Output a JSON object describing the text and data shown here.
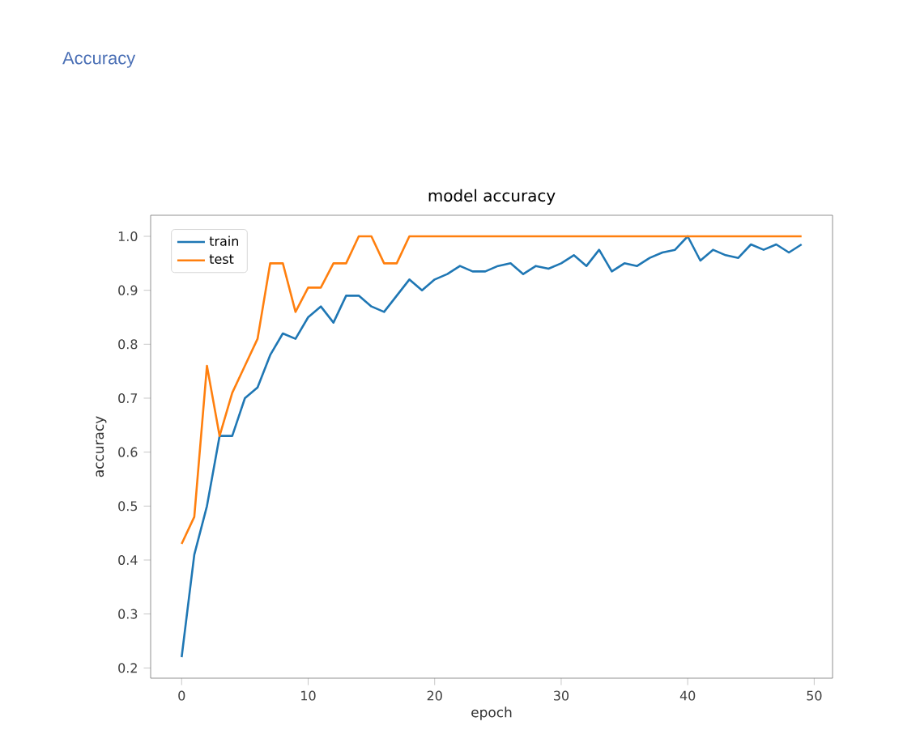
{
  "chart_data": {
    "type": "line",
    "title": "model accuracy",
    "xlabel": "epoch",
    "ylabel": "accuracy",
    "annotations": [
      "Accuracy"
    ],
    "x": [
      0,
      1,
      2,
      3,
      4,
      5,
      6,
      7,
      8,
      9,
      10,
      11,
      12,
      13,
      14,
      15,
      16,
      17,
      18,
      19,
      20,
      21,
      22,
      23,
      24,
      25,
      26,
      27,
      28,
      29,
      30,
      31,
      32,
      33,
      34,
      35,
      36,
      37,
      38,
      39,
      40,
      41,
      42,
      43,
      44,
      45,
      46,
      47,
      48,
      49
    ],
    "series": [
      {
        "name": "train",
        "color": "#1f77b4",
        "values": [
          0.22,
          0.41,
          0.5,
          0.63,
          0.63,
          0.7,
          0.72,
          0.78,
          0.82,
          0.81,
          0.85,
          0.87,
          0.84,
          0.89,
          0.89,
          0.87,
          0.86,
          0.89,
          0.92,
          0.9,
          0.92,
          0.93,
          0.945,
          0.935,
          0.935,
          0.945,
          0.95,
          0.93,
          0.945,
          0.94,
          0.95,
          0.965,
          0.945,
          0.975,
          0.935,
          0.95,
          0.945,
          0.96,
          0.97,
          0.975,
          1.0,
          0.955,
          0.975,
          0.965,
          0.96,
          0.985,
          0.975,
          0.985,
          0.97,
          0.985
        ]
      },
      {
        "name": "test",
        "color": "#ff7f0e",
        "values": [
          0.43,
          0.48,
          0.76,
          0.63,
          0.71,
          0.76,
          0.81,
          0.95,
          0.95,
          0.86,
          0.905,
          0.905,
          0.95,
          0.95,
          1.0,
          1.0,
          0.95,
          0.95,
          1.0,
          1.0,
          1.0,
          1.0,
          1.0,
          1.0,
          1.0,
          1.0,
          1.0,
          1.0,
          1.0,
          1.0,
          1.0,
          1.0,
          1.0,
          1.0,
          1.0,
          1.0,
          1.0,
          1.0,
          1.0,
          1.0,
          1.0,
          1.0,
          1.0,
          1.0,
          1.0,
          1.0,
          1.0,
          1.0,
          1.0,
          1.0
        ]
      }
    ],
    "xlim": [
      -2.45,
      51.45
    ],
    "ylim": [
      0.181,
      1.039
    ],
    "xticks": [
      0,
      10,
      20,
      30,
      40,
      50
    ],
    "yticks": [
      0.2,
      0.3,
      0.4,
      0.5,
      0.6,
      0.7,
      0.8,
      0.9,
      {
        "value": 1.0,
        "label": "1.0"
      }
    ],
    "legend": "top left"
  }
}
